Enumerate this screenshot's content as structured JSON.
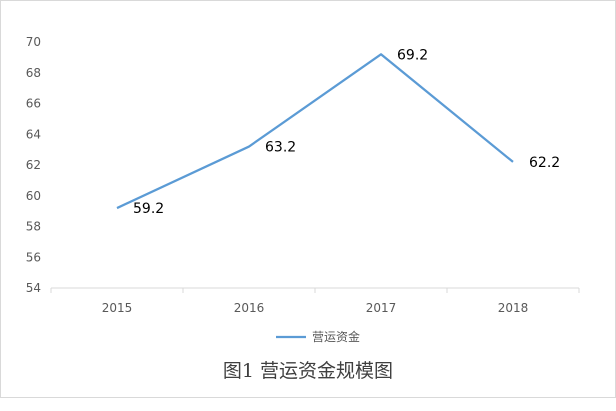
{
  "caption": "图1 营运资金规模图",
  "chart_data": {
    "type": "line",
    "categories": [
      "2015",
      "2016",
      "2017",
      "2018"
    ],
    "series": [
      {
        "name": "营运资金",
        "values": [
          59.2,
          63.2,
          69.2,
          62.2
        ],
        "data_labels": [
          "59.2",
          "63.2",
          "69.2",
          "62.2"
        ]
      }
    ],
    "ylim": [
      54,
      70
    ],
    "y_ticks": [
      "54",
      "56",
      "58",
      "60",
      "62",
      "64",
      "66",
      "68",
      "70"
    ],
    "title": "",
    "xlabel": "",
    "ylabel": "",
    "grid": false,
    "legend_position": "bottom",
    "colors": {
      "series": "#5b9bd5",
      "axis": "#d9d9d9"
    }
  }
}
